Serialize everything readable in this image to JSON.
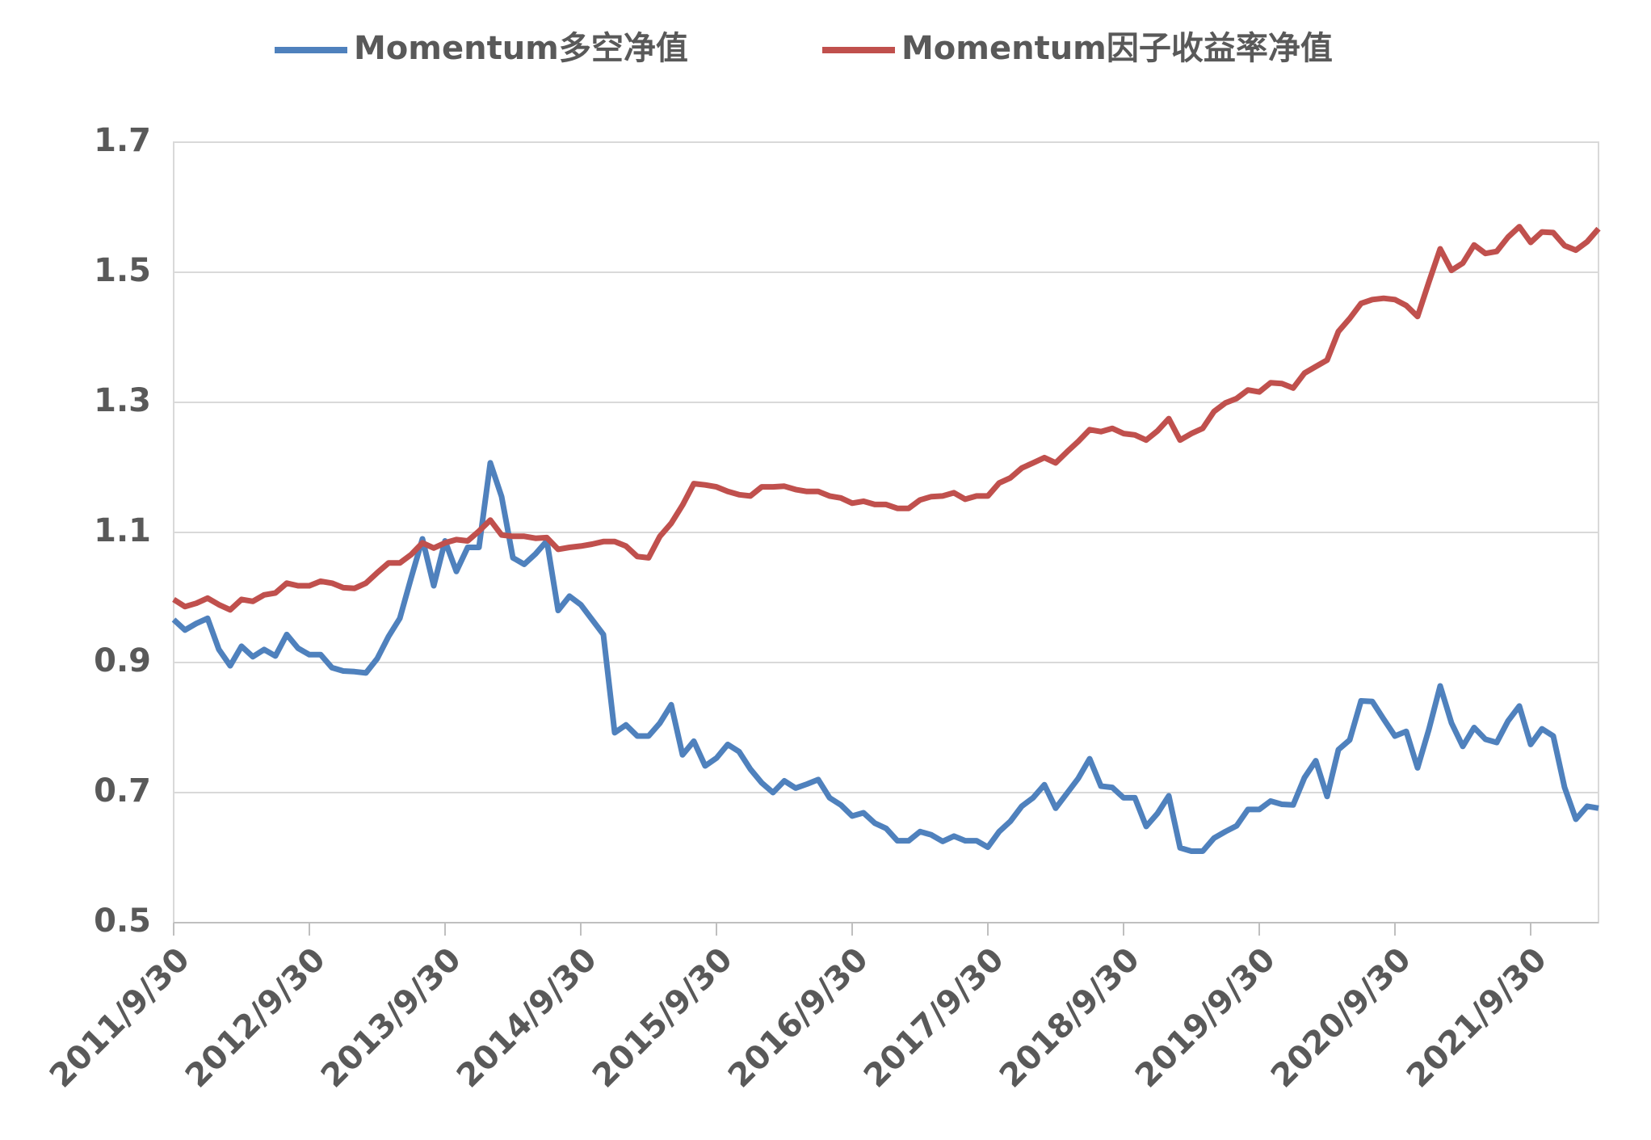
{
  "chart_data": {
    "type": "line",
    "categories": [
      "2011/9/30",
      null,
      null,
      null,
      null,
      null,
      null,
      null,
      null,
      null,
      null,
      null,
      "2012/9/30",
      null,
      null,
      null,
      null,
      null,
      null,
      null,
      null,
      null,
      null,
      null,
      "2013/9/30",
      null,
      null,
      null,
      null,
      null,
      null,
      null,
      null,
      null,
      null,
      null,
      "2014/9/30",
      null,
      null,
      null,
      null,
      null,
      null,
      null,
      null,
      null,
      null,
      null,
      "2015/9/30",
      null,
      null,
      null,
      null,
      null,
      null,
      null,
      null,
      null,
      null,
      null,
      "2016/9/30",
      null,
      null,
      null,
      null,
      null,
      null,
      null,
      null,
      null,
      null,
      null,
      "2017/9/30",
      null,
      null,
      null,
      null,
      null,
      null,
      null,
      null,
      null,
      null,
      null,
      "2018/9/30",
      null,
      null,
      null,
      null,
      null,
      null,
      null,
      null,
      null,
      null,
      null,
      "2019/9/30",
      null,
      null,
      null,
      null,
      null,
      null,
      null,
      null,
      null,
      null,
      null,
      "2020/9/30",
      null,
      null,
      null,
      null,
      null,
      null,
      null,
      null,
      null,
      null,
      null,
      "2021/9/30",
      null,
      null,
      null,
      null,
      null,
      null
    ],
    "series": [
      {
        "name": "Momentum多空净值",
        "color": "#4f81bd",
        "values": [
          0.966,
          0.95,
          0.96,
          0.968,
          0.92,
          0.895,
          0.925,
          0.909,
          0.92,
          0.91,
          0.943,
          0.922,
          0.912,
          0.912,
          0.892,
          0.887,
          0.886,
          0.884,
          0.906,
          0.94,
          0.968,
          1.03,
          1.09,
          1.018,
          1.087,
          1.04,
          1.077,
          1.077,
          1.207,
          1.155,
          1.061,
          1.051,
          1.067,
          1.087,
          0.98,
          1.002,
          0.989,
          0.966,
          0.943,
          0.792,
          0.804,
          0.787,
          0.787,
          0.807,
          0.835,
          0.758,
          0.779,
          0.741,
          0.753,
          0.774,
          0.763,
          0.736,
          0.715,
          0.7,
          0.718,
          0.707,
          0.713,
          0.72,
          0.692,
          0.681,
          0.664,
          0.669,
          0.653,
          0.645,
          0.626,
          0.626,
          0.64,
          0.635,
          0.625,
          0.633,
          0.626,
          0.626,
          0.616,
          0.64,
          0.656,
          0.679,
          0.692,
          0.712,
          0.676,
          0.699,
          0.722,
          0.752,
          0.71,
          0.708,
          0.692,
          0.692,
          0.648,
          0.668,
          0.695,
          0.615,
          0.61,
          0.61,
          0.63,
          0.64,
          0.649,
          0.674,
          0.674,
          0.687,
          0.682,
          0.681,
          0.723,
          0.749,
          0.694,
          0.766,
          0.781,
          0.841,
          0.84,
          0.813,
          0.787,
          0.794,
          0.738,
          0.797,
          0.864,
          0.807,
          0.771,
          0.8,
          0.782,
          0.777,
          0.81,
          0.833,
          0.774,
          0.798,
          0.787,
          0.708,
          0.659,
          0.679,
          0.676
        ]
      },
      {
        "name": "Momentum因子收益率净值",
        "color": "#c0504d",
        "values": [
          0.997,
          0.986,
          0.991,
          0.999,
          0.989,
          0.981,
          0.997,
          0.994,
          1.004,
          1.007,
          1.022,
          1.018,
          1.018,
          1.025,
          1.022,
          1.015,
          1.014,
          1.022,
          1.038,
          1.053,
          1.053,
          1.066,
          1.084,
          1.076,
          1.084,
          1.089,
          1.087,
          1.102,
          1.119,
          1.096,
          1.094,
          1.094,
          1.091,
          1.092,
          1.074,
          1.077,
          1.079,
          1.082,
          1.086,
          1.086,
          1.079,
          1.063,
          1.061,
          1.094,
          1.114,
          1.142,
          1.175,
          1.173,
          1.17,
          1.163,
          1.158,
          1.156,
          1.17,
          1.17,
          1.171,
          1.166,
          1.163,
          1.163,
          1.156,
          1.153,
          1.145,
          1.148,
          1.143,
          1.143,
          1.137,
          1.137,
          1.15,
          1.155,
          1.156,
          1.161,
          1.151,
          1.156,
          1.156,
          1.176,
          1.184,
          1.199,
          1.207,
          1.215,
          1.207,
          1.224,
          1.24,
          1.258,
          1.255,
          1.26,
          1.252,
          1.25,
          1.242,
          1.256,
          1.275,
          1.242,
          1.252,
          1.26,
          1.286,
          1.299,
          1.306,
          1.319,
          1.316,
          1.33,
          1.329,
          1.322,
          1.345,
          1.355,
          1.365,
          1.409,
          1.429,
          1.452,
          1.458,
          1.46,
          1.458,
          1.449,
          1.432,
          1.485,
          1.536,
          1.503,
          1.514,
          1.542,
          1.529,
          1.532,
          1.554,
          1.57,
          1.546,
          1.562,
          1.561,
          1.541,
          1.534,
          1.547,
          1.567
        ]
      }
    ],
    "ylim": [
      0.5,
      1.7
    ],
    "yticks": [
      0.5,
      0.7,
      0.9,
      1.1,
      1.3,
      1.5,
      1.7
    ],
    "grid": true,
    "legend": "top"
  }
}
